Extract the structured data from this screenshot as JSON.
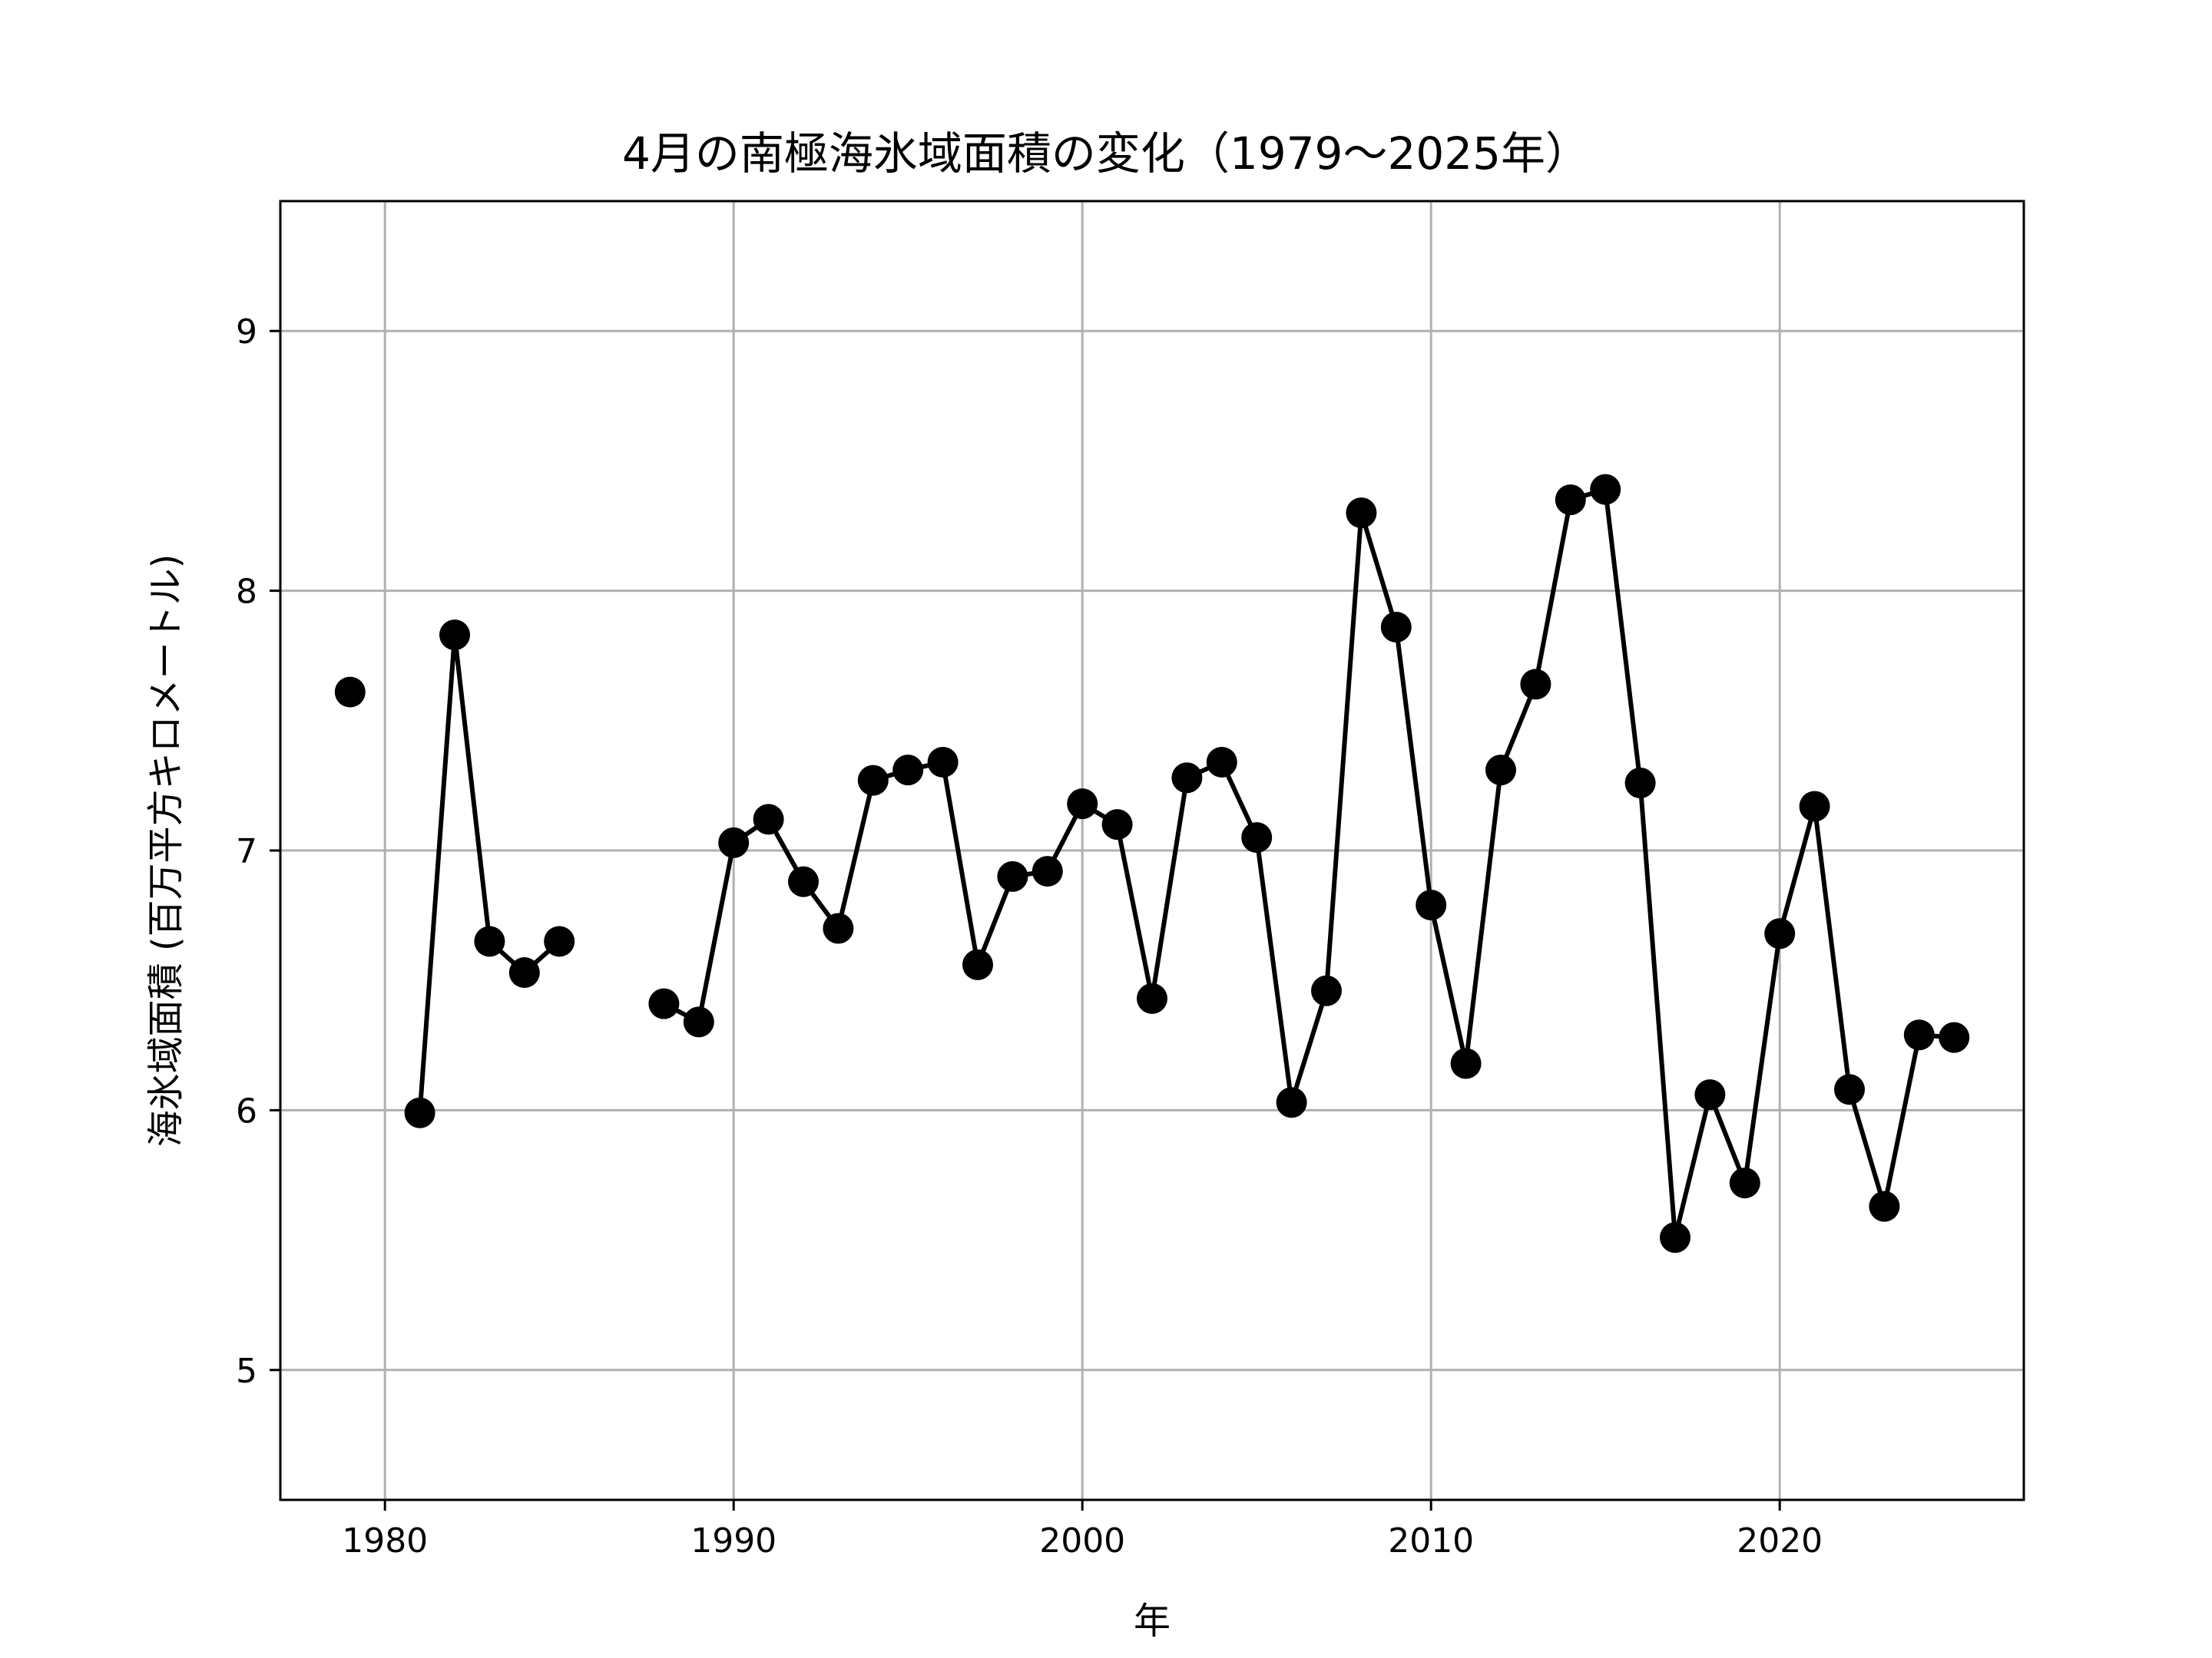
{
  "chart_data": {
    "type": "line",
    "title": "4月の南極海氷域面積の変化（1979～2025年）",
    "xlabel": "年",
    "ylabel": "海氷域面積 (百万平方キロメートル)",
    "xlim": [
      1977,
      2027
    ],
    "ylim": [
      4.5,
      9.5
    ],
    "xticks": [
      1980,
      1990,
      2000,
      2010,
      2020
    ],
    "yticks": [
      5,
      6,
      7,
      8,
      9
    ],
    "grid": true,
    "colors": {
      "line": "#000000",
      "marker": "#000000",
      "grid": "#b0b0b0"
    },
    "series": [
      {
        "x": [
          1979,
          1980,
          1981,
          1982,
          1983,
          1984,
          1985,
          1986,
          1987,
          1988,
          1989,
          1990,
          1991,
          1992,
          1993,
          1994,
          1995,
          1996,
          1997,
          1998,
          1999,
          2000,
          2001,
          2002,
          2003,
          2004,
          2005,
          2006,
          2007,
          2008,
          2009,
          2010,
          2011,
          2012,
          2013,
          2014,
          2015,
          2016,
          2017,
          2018,
          2019,
          2020,
          2021,
          2022,
          2023,
          2024,
          2025
        ],
        "values": [
          7.61,
          null,
          5.99,
          7.83,
          6.65,
          6.53,
          6.65,
          null,
          null,
          6.41,
          6.34,
          7.03,
          7.12,
          6.88,
          6.7,
          7.27,
          7.31,
          7.34,
          6.56,
          6.9,
          6.92,
          7.18,
          7.1,
          6.43,
          7.28,
          7.34,
          7.05,
          6.03,
          6.46,
          8.3,
          7.86,
          6.79,
          6.18,
          7.31,
          7.64,
          8.35,
          8.39,
          7.26,
          5.51,
          6.06,
          5.72,
          6.68,
          7.17,
          6.08,
          5.63,
          6.29,
          6.28
        ]
      }
    ]
  }
}
